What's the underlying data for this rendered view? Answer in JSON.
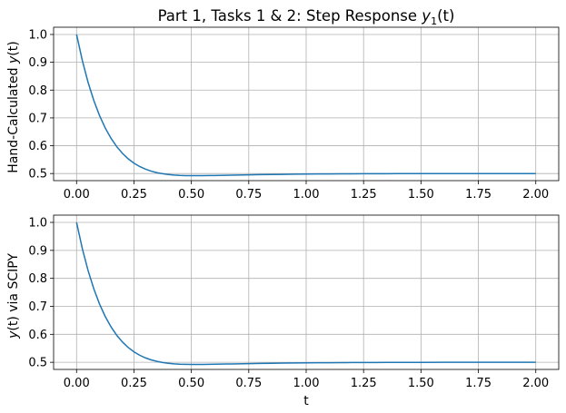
{
  "chart_data": [
    {
      "type": "line",
      "title": "Part 1, Tasks 1 & 2: Step Response",
      "title_math": {
        "base": "y",
        "sub": "1",
        "arg": "(t)"
      },
      "xlabel": "",
      "ylabel": "Hand-Calculated",
      "ylabel_math": {
        "base": "y",
        "arg": "(t)"
      },
      "xlim": [
        -0.1,
        2.1
      ],
      "ylim": [
        0.4745,
        1.026
      ],
      "xticks": [
        "0.00",
        "0.25",
        "0.50",
        "0.75",
        "1.00",
        "1.25",
        "1.50",
        "1.75",
        "2.00"
      ],
      "yticks": [
        "0.5",
        "0.6",
        "0.7",
        "0.8",
        "0.9",
        "1.0"
      ],
      "grid": true,
      "series": [
        {
          "color": "#1f77b4",
          "x": [
            0,
            0.025,
            0.05,
            0.075,
            0.1,
            0.125,
            0.15,
            0.175,
            0.2,
            0.225,
            0.25,
            0.275,
            0.3,
            0.325,
            0.35,
            0.375,
            0.4,
            0.425,
            0.45,
            0.475,
            0.5,
            0.525,
            0.55,
            0.575,
            0.6,
            0.625,
            0.65,
            0.7,
            0.75,
            0.8,
            0.85,
            0.9,
            0.95,
            1.0,
            1.05,
            1.1,
            1.15,
            1.2,
            1.25,
            1.3,
            1.35,
            1.4,
            1.45,
            1.5,
            1.6,
            1.7,
            1.8,
            1.9,
            2.0
          ],
          "y": [
            1.0,
            0.9066,
            0.8282,
            0.7628,
            0.7084,
            0.6635,
            0.6267,
            0.5966,
            0.5723,
            0.5528,
            0.5373,
            0.5252,
            0.5158,
            0.5086,
            0.5032,
            0.4993,
            0.4964,
            0.4945,
            0.4933,
            0.4926,
            0.4923,
            0.4923,
            0.4924,
            0.4927,
            0.493,
            0.4934,
            0.4938,
            0.4945,
            0.4953,
            0.496,
            0.4966,
            0.4971,
            0.4976,
            0.498,
            0.4984,
            0.4986,
            0.4989,
            0.4991,
            0.4993,
            0.4994,
            0.4995,
            0.4996,
            0.4997,
            0.4998,
            0.4999,
            0.4999,
            0.5,
            0.5,
            0.5
          ]
        }
      ]
    },
    {
      "type": "line",
      "title": "",
      "xlabel": "t",
      "ylabel": "via SCIPY",
      "ylabel_math": {
        "base": "y",
        "arg": "(t)"
      },
      "xlim": [
        -0.1,
        2.1
      ],
      "ylim": [
        0.4745,
        1.026
      ],
      "xticks": [
        "0.00",
        "0.25",
        "0.50",
        "0.75",
        "1.00",
        "1.25",
        "1.50",
        "1.75",
        "2.00"
      ],
      "yticks": [
        "0.5",
        "0.6",
        "0.7",
        "0.8",
        "0.9",
        "1.0"
      ],
      "grid": true,
      "series": [
        {
          "color": "#1f77b4",
          "x": [
            0,
            0.025,
            0.05,
            0.075,
            0.1,
            0.125,
            0.15,
            0.175,
            0.2,
            0.225,
            0.25,
            0.275,
            0.3,
            0.325,
            0.35,
            0.375,
            0.4,
            0.425,
            0.45,
            0.475,
            0.5,
            0.525,
            0.55,
            0.575,
            0.6,
            0.625,
            0.65,
            0.7,
            0.75,
            0.8,
            0.85,
            0.9,
            0.95,
            1.0,
            1.05,
            1.1,
            1.15,
            1.2,
            1.25,
            1.3,
            1.35,
            1.4,
            1.45,
            1.5,
            1.6,
            1.7,
            1.8,
            1.9,
            2.0
          ],
          "y": [
            1.0,
            0.9066,
            0.8282,
            0.7628,
            0.7084,
            0.6635,
            0.6267,
            0.5966,
            0.5723,
            0.5528,
            0.5373,
            0.5252,
            0.5158,
            0.5086,
            0.5032,
            0.4993,
            0.4964,
            0.4945,
            0.4933,
            0.4926,
            0.4923,
            0.4923,
            0.4924,
            0.4927,
            0.493,
            0.4934,
            0.4938,
            0.4945,
            0.4953,
            0.496,
            0.4966,
            0.4971,
            0.4976,
            0.498,
            0.4984,
            0.4986,
            0.4989,
            0.4991,
            0.4993,
            0.4994,
            0.4995,
            0.4996,
            0.4997,
            0.4998,
            0.4999,
            0.4999,
            0.5,
            0.5,
            0.5
          ]
        }
      ]
    }
  ]
}
